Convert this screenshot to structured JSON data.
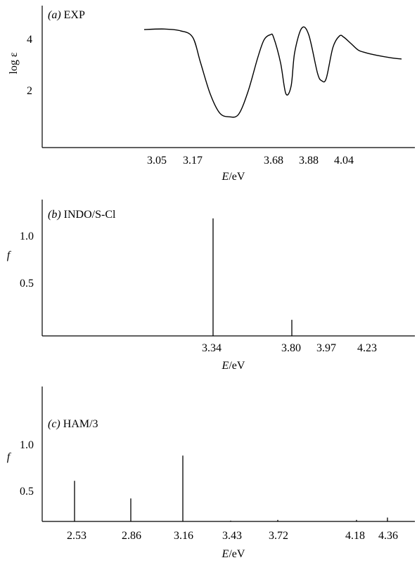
{
  "chart_data": [
    {
      "type": "line",
      "panel": "(a)",
      "title": "EXP",
      "xlabel_symbol": "E",
      "xlabel_unit": "/eV",
      "ylabel": "log ε",
      "y_ticks": [
        "4",
        "2"
      ],
      "x_ticks": [
        "3.05",
        "3.17",
        "3.68",
        "3.88",
        "4.04"
      ],
      "series": [
        {
          "x": [
            3.05,
            3.1,
            3.14,
            3.17,
            3.22,
            3.28,
            3.34,
            3.4,
            3.46,
            3.52,
            3.58,
            3.62,
            3.66,
            3.68,
            3.72,
            3.75,
            3.78,
            3.8,
            3.84,
            3.88,
            3.92,
            3.94,
            3.96,
            3.99,
            4.02,
            4.04,
            4.08,
            4.12,
            4.16,
            4.22,
            4.3,
            4.36
          ],
          "y": [
            4.3,
            4.32,
            4.25,
            4.0,
            3.0,
            1.8,
            1.05,
            0.9,
            1.0,
            1.9,
            3.2,
            3.9,
            4.1,
            4.0,
            3.0,
            1.8,
            2.1,
            3.4,
            4.35,
            4.1,
            2.6,
            2.3,
            2.4,
            3.6,
            4.05,
            4.0,
            3.75,
            3.5,
            3.4,
            3.3,
            3.2,
            3.15
          ]
        }
      ]
    },
    {
      "type": "bar",
      "panel": "(b)",
      "title": "INDO/S-Cl",
      "xlabel_symbol": "E",
      "xlabel_unit": "/eV",
      "ylabel": "f",
      "y_ticks": [
        "1.0",
        "0.5"
      ],
      "x_ticks": [
        "3.34",
        "3.80",
        "3.97",
        "4.23"
      ],
      "x": [
        3.34,
        3.8,
        3.97,
        4.23
      ],
      "values": [
        1.17,
        0.16,
        0.0,
        0.0
      ]
    },
    {
      "type": "bar",
      "panel": "(c)",
      "title": "HAM/3",
      "xlabel_symbol": "E",
      "xlabel_unit": "/eV",
      "ylabel": "f",
      "y_ticks": [
        "1.0",
        "0.5"
      ],
      "x_ticks": [
        "2.53",
        "2.86",
        "3.16",
        "3.43",
        "3.72",
        "4.18",
        "4.36"
      ],
      "x": [
        2.53,
        2.86,
        3.16,
        3.43,
        3.72,
        4.18,
        4.36
      ],
      "values": [
        0.53,
        0.3,
        0.86,
        0.01,
        0.02,
        0.02,
        0.05
      ]
    }
  ]
}
